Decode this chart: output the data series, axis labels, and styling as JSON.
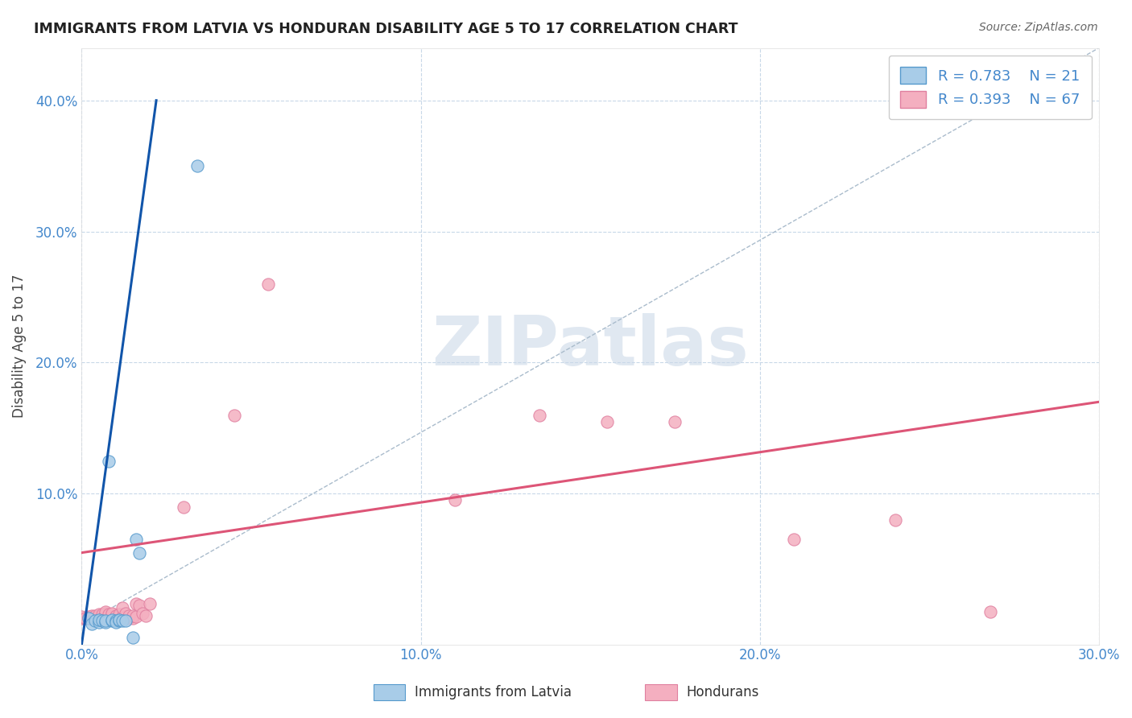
{
  "title": "IMMIGRANTS FROM LATVIA VS HONDURAN DISABILITY AGE 5 TO 17 CORRELATION CHART",
  "source": "Source: ZipAtlas.com",
  "ylabel": "Disability Age 5 to 17",
  "xlim": [
    0.0,
    0.3
  ],
  "ylim": [
    -0.015,
    0.44
  ],
  "xtick_labels": [
    "0.0%",
    "10.0%",
    "20.0%",
    "30.0%"
  ],
  "xtick_values": [
    0.0,
    0.1,
    0.2,
    0.3
  ],
  "ytick_labels": [
    "10.0%",
    "20.0%",
    "30.0%",
    "40.0%"
  ],
  "ytick_values": [
    0.1,
    0.2,
    0.3,
    0.4
  ],
  "legend_labels": [
    "Immigrants from Latvia",
    "Hondurans"
  ],
  "latvia_R": 0.783,
  "latvia_N": 21,
  "honduran_R": 0.393,
  "honduran_N": 67,
  "latvia_color": "#a8cce8",
  "honduran_color": "#f4afc0",
  "latvia_edge_color": "#5599cc",
  "honduran_edge_color": "#e080a0",
  "latvia_line_color": "#1155aa",
  "honduran_line_color": "#dd5577",
  "background_color": "#ffffff",
  "grid_color": "#c8d8e8",
  "title_color": "#222222",
  "tick_color": "#4488cc",
  "axis_label_color": "#444444",
  "watermark_color": "#ccd9e8",
  "latvia_scatter_x": [
    0.002,
    0.003,
    0.004,
    0.005,
    0.005,
    0.006,
    0.007,
    0.007,
    0.008,
    0.009,
    0.009,
    0.01,
    0.01,
    0.011,
    0.011,
    0.012,
    0.013,
    0.015,
    0.016,
    0.017,
    0.034
  ],
  "latvia_scatter_y": [
    0.005,
    0.001,
    0.003,
    0.002,
    0.004,
    0.003,
    0.002,
    0.003,
    0.125,
    0.003,
    0.004,
    0.003,
    0.002,
    0.003,
    0.004,
    0.003,
    0.003,
    -0.01,
    0.065,
    0.055,
    0.35
  ],
  "honduran_scatter_x": [
    0.0,
    0.0,
    0.001,
    0.002,
    0.002,
    0.003,
    0.003,
    0.003,
    0.004,
    0.004,
    0.004,
    0.005,
    0.005,
    0.005,
    0.005,
    0.006,
    0.006,
    0.006,
    0.006,
    0.007,
    0.007,
    0.007,
    0.007,
    0.007,
    0.007,
    0.008,
    0.008,
    0.008,
    0.008,
    0.009,
    0.009,
    0.009,
    0.009,
    0.009,
    0.01,
    0.01,
    0.01,
    0.011,
    0.011,
    0.011,
    0.011,
    0.012,
    0.012,
    0.012,
    0.013,
    0.013,
    0.013,
    0.014,
    0.014,
    0.015,
    0.015,
    0.016,
    0.016,
    0.017,
    0.018,
    0.019,
    0.02,
    0.03,
    0.045,
    0.055,
    0.11,
    0.135,
    0.155,
    0.175,
    0.21,
    0.24,
    0.268
  ],
  "honduran_scatter_y": [
    0.005,
    0.006,
    0.005,
    0.005,
    0.006,
    0.005,
    0.006,
    0.007,
    0.005,
    0.006,
    0.007,
    0.005,
    0.006,
    0.007,
    0.008,
    0.005,
    0.006,
    0.007,
    0.008,
    0.005,
    0.006,
    0.007,
    0.008,
    0.009,
    0.01,
    0.005,
    0.006,
    0.007,
    0.008,
    0.005,
    0.006,
    0.007,
    0.008,
    0.009,
    0.005,
    0.006,
    0.007,
    0.005,
    0.006,
    0.007,
    0.008,
    0.005,
    0.006,
    0.013,
    0.005,
    0.006,
    0.009,
    0.005,
    0.007,
    0.005,
    0.007,
    0.006,
    0.016,
    0.015,
    0.009,
    0.007,
    0.016,
    0.09,
    0.16,
    0.26,
    0.095,
    0.16,
    0.155,
    0.155,
    0.065,
    0.08,
    0.01
  ],
  "latvia_line_x": [
    0.0,
    0.022
  ],
  "latvia_line_y": [
    -0.015,
    0.4
  ],
  "honduran_line_x": [
    0.0,
    0.3
  ],
  "honduran_line_y": [
    0.055,
    0.17
  ],
  "diag_line_x": [
    0.0,
    0.3
  ],
  "diag_line_y": [
    0.0,
    0.44
  ]
}
